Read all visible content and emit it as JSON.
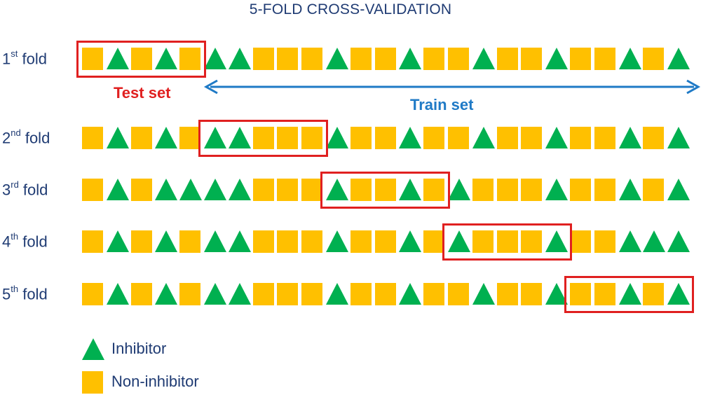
{
  "title": "5-FOLD CROSS-VALIDATION",
  "colors": {
    "inhibitor": "#00b050",
    "non_inhibitor": "#ffc000",
    "test_box": "#e02020",
    "train_arrow": "#1f7ac6",
    "text": "#1f3b73"
  },
  "annotations": {
    "test_set": "Test set",
    "train_set": "Train set"
  },
  "folds": [
    {
      "ord": "1",
      "sup": "st",
      "word": "fold",
      "test_range": [
        0,
        4
      ],
      "sequence": [
        "S",
        "T",
        "S",
        "T",
        "S",
        "T",
        "T",
        "S",
        "S",
        "S",
        "T",
        "S",
        "S",
        "T",
        "S",
        "S",
        "T",
        "S",
        "S",
        "T",
        "S",
        "S",
        "T",
        "S",
        "T"
      ]
    },
    {
      "ord": "2",
      "sup": "nd",
      "word": "fold",
      "test_range": [
        5,
        9
      ],
      "sequence": [
        "S",
        "T",
        "S",
        "T",
        "S",
        "T",
        "T",
        "S",
        "S",
        "S",
        "T",
        "S",
        "S",
        "T",
        "S",
        "S",
        "T",
        "S",
        "S",
        "T",
        "S",
        "S",
        "T",
        "S",
        "T"
      ]
    },
    {
      "ord": "3",
      "sup": "rd",
      "word": "fold",
      "test_range": [
        10,
        14
      ],
      "sequence": [
        "S",
        "T",
        "S",
        "T",
        "T",
        "T",
        "T",
        "S",
        "S",
        "S",
        "T",
        "S",
        "S",
        "T",
        "S",
        "T",
        "S",
        "S",
        "S",
        "T",
        "S",
        "S",
        "T",
        "S",
        "T"
      ]
    },
    {
      "ord": "4",
      "sup": "th",
      "word": "fold",
      "test_range": [
        15,
        19
      ],
      "sequence": [
        "S",
        "T",
        "S",
        "T",
        "S",
        "T",
        "T",
        "S",
        "S",
        "S",
        "T",
        "S",
        "S",
        "T",
        "S",
        "T",
        "S",
        "S",
        "S",
        "T",
        "S",
        "S",
        "T",
        "T",
        "T"
      ]
    },
    {
      "ord": "5",
      "sup": "th",
      "word": "fold",
      "test_range": [
        20,
        24
      ],
      "sequence": [
        "S",
        "T",
        "S",
        "T",
        "S",
        "T",
        "T",
        "S",
        "S",
        "S",
        "T",
        "S",
        "S",
        "T",
        "S",
        "S",
        "T",
        "S",
        "S",
        "T",
        "S",
        "S",
        "T",
        "S",
        "T"
      ]
    }
  ],
  "legend": [
    {
      "shape": "T",
      "label": "Inhibitor"
    },
    {
      "shape": "S",
      "label": "Non-inhibitor"
    }
  ]
}
